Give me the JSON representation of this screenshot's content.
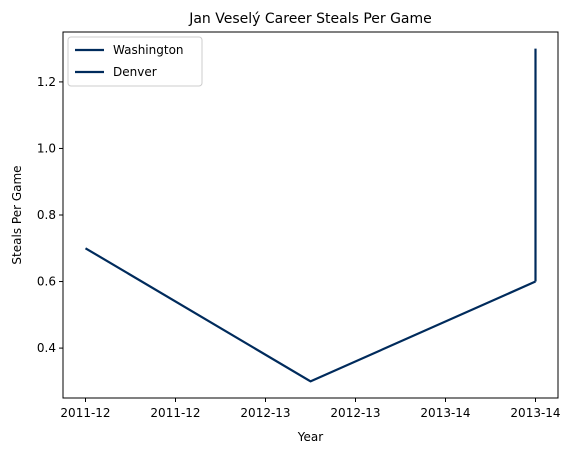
{
  "chart_data": {
    "type": "line",
    "title": "Jan Veselý Career Steals Per Game",
    "xlabel": "Year",
    "ylabel": "Steals Per Game",
    "x_tick_labels": [
      "2011-12",
      "2011-12",
      "2012-13",
      "2012-13",
      "2013-14",
      "2013-14"
    ],
    "y_ticks": [
      0.4,
      0.6,
      0.8,
      1.0,
      1.2
    ],
    "y_tick_labels": [
      "0.4",
      "0.6",
      "0.8",
      "1.0",
      "1.2"
    ],
    "xlim": [
      -0.1,
      2.1
    ],
    "ylim": [
      0.25,
      1.35
    ],
    "grid": false,
    "legend_position": "upper left",
    "series": [
      {
        "name": "Washington",
        "color": "#002B5C",
        "x": [
          0,
          1,
          2
        ],
        "y": [
          0.7,
          0.3,
          0.6
        ]
      },
      {
        "name": "Denver",
        "color": "#002B5C",
        "x": [
          2,
          2
        ],
        "y": [
          0.6,
          1.3
        ]
      }
    ]
  }
}
